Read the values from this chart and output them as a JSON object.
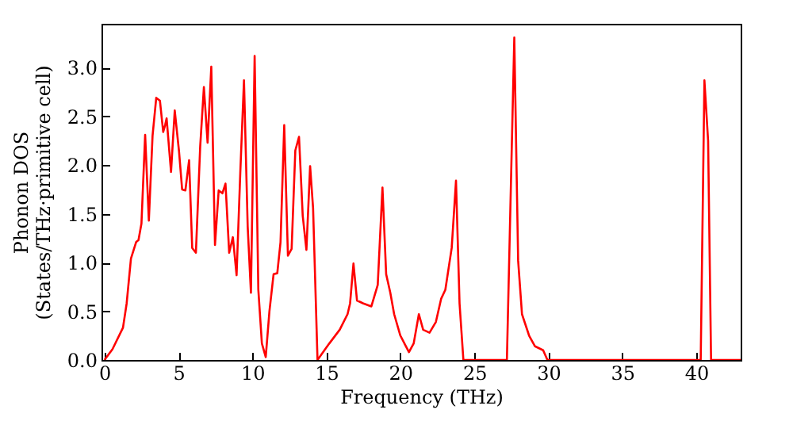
{
  "chart_data": {
    "type": "line",
    "xlabel": "Frequency (THz)",
    "ylabel": "Phonon DOS\n(States/THz·primitive cell)",
    "xlim": [
      -0.2,
      43
    ],
    "ylim": [
      0,
      3.45
    ],
    "xticks": [
      0,
      5,
      10,
      15,
      20,
      25,
      30,
      35,
      40
    ],
    "yticks": [
      {
        "value": 0,
        "label": "0.0"
      },
      0.5,
      {
        "value": 1,
        "label": "1.0"
      },
      1.5,
      {
        "value": 2,
        "label": "2.0"
      },
      2.5,
      {
        "value": 3,
        "label": "3.0"
      }
    ],
    "grid": false,
    "line_style": "solid",
    "marker": "none",
    "x": [
      0,
      0.54,
      1.25,
      1.5,
      1.79,
      2.14,
      2.3,
      2.5,
      2.75,
      3.0,
      3.25,
      3.5,
      3.75,
      3.97,
      4.1,
      4.2,
      4.5,
      4.75,
      5.04,
      5.25,
      5.47,
      5.72,
      5.93,
      6.18,
      6.47,
      6.72,
      6.97,
      7.22,
      7.47,
      7.72,
      7.97,
      8.18,
      8.43,
      8.68,
      8.93,
      9.18,
      9.43,
      9.68,
      9.9,
      10.15,
      10.4,
      10.64,
      10.9,
      11.15,
      11.43,
      11.68,
      11.9,
      12.15,
      12.4,
      12.65,
      12.9,
      13.15,
      13.4,
      13.65,
      13.9,
      14.1,
      14.4,
      15.2,
      15.9,
      16.43,
      16.6,
      16.83,
      17.07,
      17.5,
      18.04,
      18.47,
      18.79,
      19.04,
      19.32,
      19.58,
      20.0,
      20.58,
      20.9,
      21.25,
      21.54,
      21.97,
      22.4,
      22.76,
      23.04,
      23.47,
      23.76,
      24.0,
      24.26,
      27.2,
      27.7,
      27.96,
      28.22,
      28.7,
      29.1,
      29.65,
      29.94,
      40.3,
      40.55,
      40.8,
      41.0,
      43
    ],
    "series": [
      {
        "color": "#ff0000",
        "values": [
          0,
          0.11,
          0.33,
          0.58,
          1.04,
          1.21,
          1.23,
          1.4,
          2.31,
          1.43,
          2.3,
          2.69,
          2.66,
          2.34,
          2.41,
          2.48,
          1.93,
          2.56,
          2.14,
          1.75,
          1.74,
          2.05,
          1.15,
          1.1,
          2.19,
          2.8,
          2.23,
          3.01,
          1.18,
          1.74,
          1.71,
          1.81,
          1.1,
          1.26,
          0.87,
          1.92,
          2.87,
          1.37,
          0.69,
          3.12,
          0.72,
          0.17,
          0.03,
          0.5,
          0.88,
          0.89,
          1.21,
          2.41,
          1.07,
          1.14,
          2.15,
          2.29,
          1.48,
          1.13,
          1.99,
          1.56,
          0,
          0.17,
          0.31,
          0.47,
          0.58,
          0.99,
          0.61,
          0.58,
          0.55,
          0.77,
          1.77,
          0.88,
          0.69,
          0.47,
          0.25,
          0.08,
          0.17,
          0.47,
          0.31,
          0.28,
          0.39,
          0.63,
          0.72,
          1.15,
          1.84,
          0.58,
          0,
          0,
          3.31,
          1.02,
          0.47,
          0.25,
          0.14,
          0.1,
          0,
          0,
          2.87,
          2.25,
          0,
          0
        ]
      }
    ]
  }
}
